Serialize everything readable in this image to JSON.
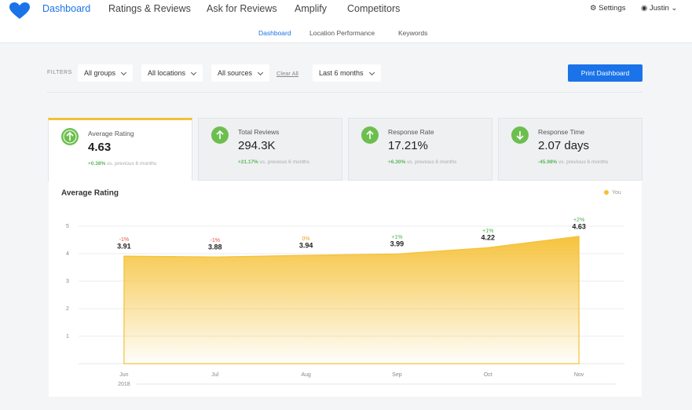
{
  "nav": {
    "tabs": [
      "Dashboard",
      "Ratings & Reviews",
      "Ask for Reviews",
      "Amplify",
      "Competitors"
    ],
    "settings": "Settings",
    "user": "Justin"
  },
  "subnav": [
    "Dashboard",
    "Location Performance",
    "Keywords"
  ],
  "filters": {
    "label": "FILTERS",
    "groups": "All groups",
    "locations": "All locations",
    "sources": "All sources",
    "clear": "Clear All",
    "period": "Last 6 months",
    "print": "Print Dashboard"
  },
  "cards": [
    {
      "title": "Average Rating",
      "value": "4.63",
      "change": "+0.38%",
      "note": "vs. previous 6 months"
    },
    {
      "title": "Total Reviews",
      "value": "294.3K",
      "change": "+21.17%",
      "note": "vs. previous 6 months"
    },
    {
      "title": "Response Rate",
      "value": "17.21%",
      "change": "+6.30%",
      "note": "vs. previous 6 months"
    },
    {
      "title": "Response Time",
      "value": "2.07 days",
      "change": "-45.98%",
      "note": "vs. previous 6 months"
    }
  ],
  "chart_data": {
    "type": "area",
    "title": "Average Rating",
    "categories": [
      "Jun",
      "Jul",
      "Aug",
      "Sep",
      "Oct",
      "Nov"
    ],
    "year_label": "2018",
    "series": [
      {
        "name": "You",
        "color": "#f5c033",
        "values": [
          3.91,
          3.88,
          3.94,
          3.99,
          4.22,
          4.63
        ],
        "changes": [
          "-1%",
          "-1%",
          "0%",
          "+1%",
          "+1%",
          "+2%"
        ]
      }
    ],
    "ylim": [
      0,
      5
    ],
    "yticks": [
      1,
      2,
      3,
      4,
      5
    ],
    "grid": true,
    "legend": "top-right"
  }
}
